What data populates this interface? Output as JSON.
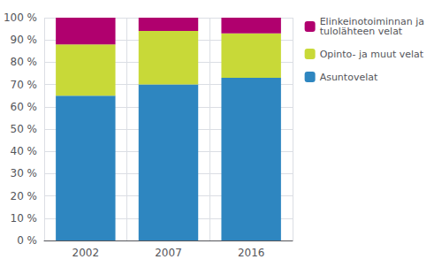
{
  "chart_data": {
    "type": "bar",
    "stacked": true,
    "categories": [
      "2002",
      "2007",
      "2016"
    ],
    "series": [
      {
        "name": "Asuntovelat",
        "color": "#2e86c0",
        "values": [
          65,
          70,
          73
        ]
      },
      {
        "name": "Opinto- ja muut velat",
        "color": "#c8d938",
        "values": [
          23,
          24,
          20
        ]
      },
      {
        "name": "Elinkeinotoiminnan ja\ntulolähteen velat",
        "color": "#b0006e",
        "values": [
          12,
          6,
          7
        ]
      }
    ],
    "ylim": [
      0,
      100
    ],
    "yticks": [
      {
        "value": 0,
        "label": "0 %"
      },
      {
        "value": 10,
        "label": "10 %"
      },
      {
        "value": 20,
        "label": "20 %"
      },
      {
        "value": 30,
        "label": "30 %"
      },
      {
        "value": 40,
        "label": "40 %"
      },
      {
        "value": 50,
        "label": "50 %"
      },
      {
        "value": 60,
        "label": "60 %"
      },
      {
        "value": 70,
        "label": "70 %"
      },
      {
        "value": 80,
        "label": "80 %"
      },
      {
        "value": 90,
        "label": "90 %"
      },
      {
        "value": 100,
        "label": "100 %"
      }
    ],
    "grid": true,
    "legend": "right"
  }
}
